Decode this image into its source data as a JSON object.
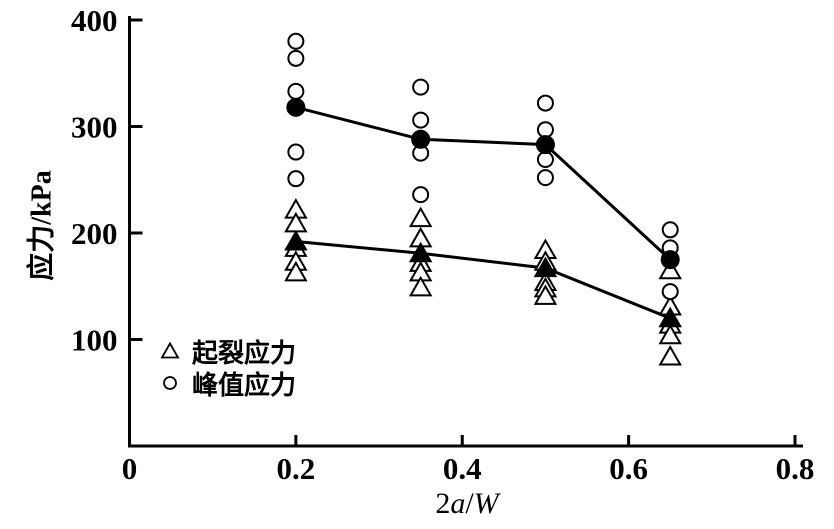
{
  "labels": {
    "xlabel_coefficient": "2",
    "xlabel_variable_a": "a",
    "xlabel_slash": "/",
    "xlabel_variable_w": "W"
  },
  "chart_data": {
    "type": "scatter",
    "title": "",
    "xlabel": "2a/W",
    "ylabel": "应力/kPa",
    "xlim": [
      0,
      0.8
    ],
    "ylim": [
      0,
      400
    ],
    "grid": false,
    "legend_position": "lower-left-inside",
    "colors": {
      "foreground": "#000000",
      "background": "#ffffff"
    },
    "x_ticks": [
      {
        "value": 0,
        "label": "0"
      },
      {
        "value": 0.2,
        "label": "0.2"
      },
      {
        "value": 0.4,
        "label": "0.4"
      },
      {
        "value": 0.6,
        "label": "0.6"
      },
      {
        "value": 0.8,
        "label": "0.8"
      }
    ],
    "y_ticks": [
      {
        "value": 100,
        "label": "100"
      },
      {
        "value": 200,
        "label": "200"
      },
      {
        "value": 300,
        "label": "300"
      },
      {
        "value": 400,
        "label": "400"
      }
    ],
    "legend": [
      {
        "marker": "triangle-open",
        "label": "起裂应力"
      },
      {
        "marker": "circle-open",
        "label": "峰值应力"
      }
    ],
    "series": [
      {
        "name": "起裂应力",
        "marker": "triangle",
        "scatter_points": [
          [
            0.2,
            222
          ],
          [
            0.2,
            209
          ],
          [
            0.2,
            186
          ],
          [
            0.2,
            173
          ],
          [
            0.2,
            163
          ],
          [
            0.35,
            214
          ],
          [
            0.35,
            195
          ],
          [
            0.35,
            172
          ],
          [
            0.35,
            163
          ],
          [
            0.35,
            149
          ],
          [
            0.5,
            184
          ],
          [
            0.5,
            173
          ],
          [
            0.5,
            154
          ],
          [
            0.5,
            148
          ],
          [
            0.5,
            141
          ],
          [
            0.65,
            165
          ],
          [
            0.65,
            131
          ],
          [
            0.65,
            114
          ],
          [
            0.65,
            104
          ],
          [
            0.65,
            84
          ]
        ],
        "mean_line": [
          [
            0.2,
            192
          ],
          [
            0.35,
            181
          ],
          [
            0.5,
            167
          ],
          [
            0.65,
            120
          ]
        ]
      },
      {
        "name": "峰值应力",
        "marker": "circle",
        "scatter_points": [
          [
            0.2,
            380
          ],
          [
            0.2,
            364
          ],
          [
            0.2,
            333
          ],
          [
            0.2,
            276
          ],
          [
            0.2,
            251
          ],
          [
            0.35,
            337
          ],
          [
            0.35,
            306
          ],
          [
            0.35,
            275
          ],
          [
            0.35,
            236
          ],
          [
            0.5,
            322
          ],
          [
            0.5,
            297
          ],
          [
            0.5,
            269
          ],
          [
            0.5,
            252
          ],
          [
            0.65,
            203
          ],
          [
            0.65,
            186
          ],
          [
            0.65,
            145
          ]
        ],
        "mean_line": [
          [
            0.2,
            318
          ],
          [
            0.35,
            288
          ],
          [
            0.5,
            283
          ],
          [
            0.65,
            175
          ]
        ]
      }
    ]
  }
}
